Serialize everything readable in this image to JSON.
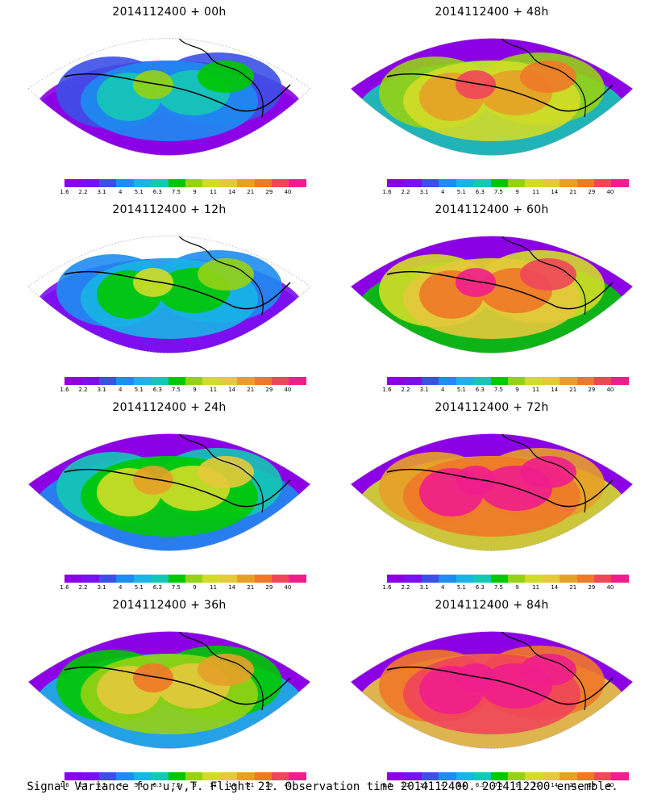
{
  "panels": [
    {
      "title": "2014112400 + 00h"
    },
    {
      "title": "2014112400 + 48h"
    },
    {
      "title": "2014112400 + 12h"
    },
    {
      "title": "2014112400 + 60h"
    },
    {
      "title": "2014112400 + 24h"
    },
    {
      "title": "2014112400 + 72h"
    },
    {
      "title": "2014112400 + 36h"
    },
    {
      "title": "2014112400 + 84h"
    }
  ],
  "colorbar": {
    "colors": [
      "#8c00e6",
      "#7a10f0",
      "#3c50e6",
      "#1e8cf0",
      "#1ab4e6",
      "#14c8b4",
      "#00c800",
      "#96d214",
      "#d2dc28",
      "#e6c83c",
      "#e6a028",
      "#f07828",
      "#f0465a",
      "#f01e8c"
    ],
    "labels": [
      "1.6",
      "2.2",
      "3.1",
      "4",
      "5.1",
      "6.3",
      "7.5",
      "9",
      "11",
      "14",
      "21",
      "29",
      "40"
    ]
  },
  "caption": "Signal Variance for u,v,T. Flight 21. Observation time 2014112400. 2014112200 ensemble."
}
